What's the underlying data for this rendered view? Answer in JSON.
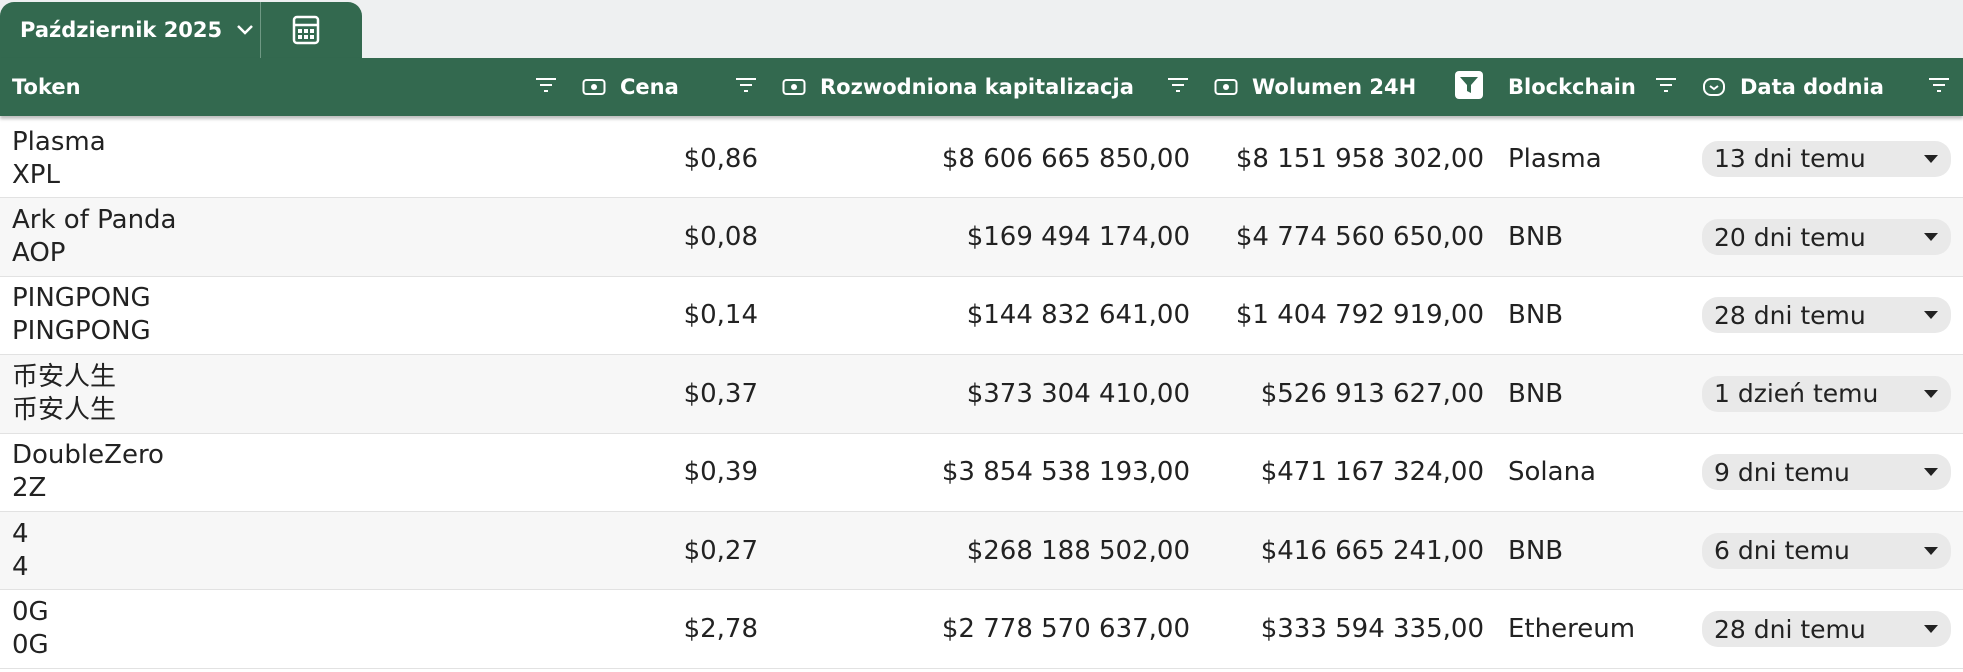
{
  "header": {
    "tab_label": "Październik 2025"
  },
  "table": {
    "columns": [
      "Token",
      "Cena",
      "Rozwodniona kapitalizacja",
      "Wolumen 24H",
      "Blockchain",
      "Data dodnia"
    ],
    "rows": [
      [
        "Plasma",
        "XPL",
        "$0,86",
        "$8 606 665 850,00",
        "$8 151 958 302,00",
        "Plasma",
        "13 dni temu"
      ],
      [
        "Ark of Panda",
        "AOP",
        "$0,08",
        "$169 494 174,00",
        "$4 774 560 650,00",
        "BNB",
        "20 dni temu"
      ],
      [
        "PINGPONG",
        "PINGPONG",
        "$0,14",
        "$144 832 641,00",
        "$1 404 792 919,00",
        "BNB",
        "28 dni temu"
      ],
      [
        "币安人生",
        "币安人生",
        "$0,37",
        "$373 304 410,00",
        "$526 913 627,00",
        "BNB",
        "1 dzień temu"
      ],
      [
        "DoubleZero",
        "2Z",
        "$0,39",
        "$3 854 538 193,00",
        "$471 167 324,00",
        "Solana",
        "9 dni temu"
      ],
      [
        "4",
        "4",
        "$0,27",
        "$268 188 502,00",
        "$416 665 241,00",
        "BNB",
        "6 dni temu"
      ],
      [
        "0G",
        "0G",
        "$2,78",
        "$2 778 570 637,00",
        "$333 594 335,00",
        "Ethereum",
        "28 dni temu"
      ]
    ]
  }
}
